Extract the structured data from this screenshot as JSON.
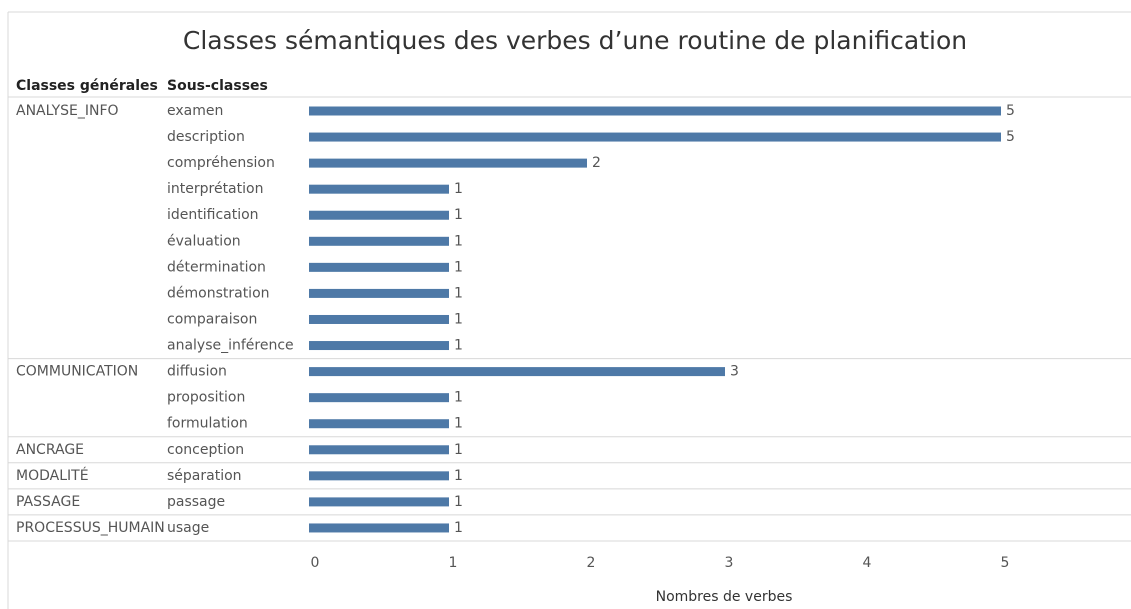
{
  "chart_data": {
    "type": "bar",
    "title": "Classes sémantiques des verbes d’une routine de planification",
    "column_headers": [
      "Classes générales",
      "Sous-classes"
    ],
    "xlabel": "Nombres de verbes",
    "color": "#4e79a7",
    "xlim": [
      0,
      6
    ],
    "xticks": [
      0,
      1,
      2,
      3,
      4,
      5,
      6
    ],
    "groups": [
      {
        "name": "ANALYSE_INFO",
        "categories": [
          "examen",
          "description",
          "compréhension",
          "interprétation",
          "identification",
          "évaluation",
          "détermination",
          "démonstration",
          "comparaison",
          "analyse_inférence"
        ],
        "values": [
          5,
          5,
          2,
          1,
          1,
          1,
          1,
          1,
          1,
          1
        ]
      },
      {
        "name": "COMMUNICATION",
        "categories": [
          "diffusion",
          "proposition",
          "formulation"
        ],
        "values": [
          3,
          1,
          1
        ]
      },
      {
        "name": "ANCRAGE",
        "categories": [
          "conception"
        ],
        "values": [
          1
        ]
      },
      {
        "name": "MODALITÉ",
        "categories": [
          "séparation"
        ],
        "values": [
          1
        ]
      },
      {
        "name": "PASSAGE",
        "categories": [
          "passage"
        ],
        "values": [
          1
        ]
      },
      {
        "name": "PROCESSUS_HUMAIN",
        "categories": [
          "usage"
        ],
        "values": [
          1
        ]
      }
    ]
  }
}
